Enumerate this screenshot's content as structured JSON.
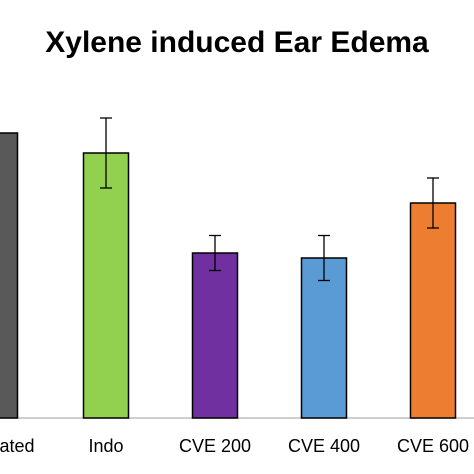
{
  "chart_data": {
    "type": "bar",
    "title": "Xylene induced Ear Edema",
    "xlabel": "",
    "ylabel": "",
    "categories": [
      "Untreated",
      "Indo",
      "CVE 200",
      "CVE 400",
      "CVE 600"
    ],
    "values": [
      0.57,
      0.53,
      0.33,
      0.32,
      0.43
    ],
    "errors": [
      0.0,
      0.07,
      0.035,
      0.045,
      0.05
    ],
    "colors": [
      "#595959",
      "#92D050",
      "#7030A0",
      "#5B9BD5",
      "#ED7D31"
    ],
    "ylim": [
      0,
      0.6
    ],
    "grid": false,
    "legend": "none"
  }
}
